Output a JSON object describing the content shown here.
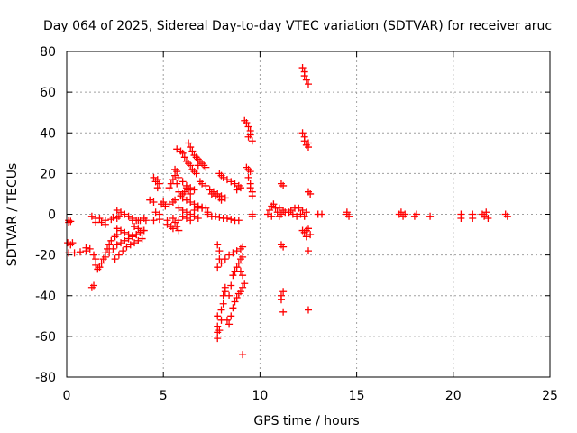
{
  "chart_data": {
    "type": "scatter",
    "title": "Day 064 of 2025, Sidereal Day-to-day VTEC variation (SDTVAR) for receiver aruc",
    "xlabel": "GPS time / hours",
    "ylabel": "SDTVAR / TECUs",
    "xlim": [
      0,
      25
    ],
    "ylim": [
      -80,
      80
    ],
    "xticks": [
      0,
      5,
      10,
      15,
      20,
      25
    ],
    "yticks": [
      -80,
      -60,
      -40,
      -20,
      0,
      20,
      40,
      60,
      80
    ],
    "grid": true,
    "marker": "+",
    "color": "#ff0000",
    "series": [
      {
        "name": "SDTVAR",
        "points": [
          [
            0.1,
            -3
          ],
          [
            0.2,
            -3.5
          ],
          [
            0.1,
            -4
          ],
          [
            0.05,
            -14
          ],
          [
            0.2,
            -15
          ],
          [
            0.3,
            -14
          ],
          [
            0.1,
            -19
          ],
          [
            0.4,
            -19
          ],
          [
            0.7,
            -18.5
          ],
          [
            1.0,
            -18
          ],
          [
            1.2,
            -17
          ],
          [
            1.0,
            -16.5
          ],
          [
            1.3,
            -36
          ],
          [
            1.4,
            -35
          ],
          [
            1.3,
            -1
          ],
          [
            1.5,
            -2
          ],
          [
            1.7,
            -2
          ],
          [
            2.0,
            -3
          ],
          [
            2.3,
            -2.5
          ],
          [
            2.6,
            -2
          ],
          [
            2.7,
            -1
          ],
          [
            2.4,
            -1.5
          ],
          [
            1.5,
            -4
          ],
          [
            1.8,
            -4
          ],
          [
            2.0,
            -5
          ],
          [
            1.4,
            -20
          ],
          [
            1.5,
            -22
          ],
          [
            1.5,
            -25
          ],
          [
            1.6,
            -27
          ],
          [
            1.7,
            -26
          ],
          [
            1.8,
            -24
          ],
          [
            1.9,
            -22
          ],
          [
            2.0,
            -19
          ],
          [
            2.1,
            -17
          ],
          [
            2.2,
            -15
          ],
          [
            2.3,
            -13
          ],
          [
            2.5,
            -11
          ],
          [
            2.6,
            -10
          ],
          [
            2.0,
            -21
          ],
          [
            2.2,
            -19
          ],
          [
            2.4,
            -17
          ],
          [
            2.6,
            -15
          ],
          [
            2.8,
            -14
          ],
          [
            3.0,
            -13
          ],
          [
            3.2,
            -12
          ],
          [
            3.4,
            -11
          ],
          [
            3.6,
            -10
          ],
          [
            3.8,
            -9
          ],
          [
            4.0,
            -8
          ],
          [
            2.5,
            -22
          ],
          [
            2.7,
            -20
          ],
          [
            2.9,
            -18
          ],
          [
            3.1,
            -16
          ],
          [
            3.3,
            -15
          ],
          [
            3.5,
            -14
          ],
          [
            3.7,
            -13
          ],
          [
            3.9,
            -12
          ],
          [
            2.6,
            -7
          ],
          [
            2.8,
            -8
          ],
          [
            3.0,
            -9
          ],
          [
            3.2,
            -10
          ],
          [
            3.4,
            -10.5
          ],
          [
            3.6,
            -10
          ],
          [
            3.8,
            -9
          ],
          [
            3.9,
            -8
          ],
          [
            3.7,
            -7
          ],
          [
            3.5,
            -6
          ],
          [
            2.6,
            2
          ],
          [
            2.8,
            1
          ],
          [
            3.0,
            0
          ],
          [
            3.2,
            -1
          ],
          [
            3.4,
            -2
          ],
          [
            3.6,
            -3
          ],
          [
            3.8,
            -3
          ],
          [
            4.0,
            -2
          ],
          [
            3.4,
            -3
          ],
          [
            3.7,
            -3
          ],
          [
            4.1,
            -3
          ],
          [
            4.5,
            -3
          ],
          [
            4.8,
            -2.5
          ],
          [
            5.2,
            -3
          ],
          [
            5.5,
            -2
          ],
          [
            5.8,
            -3
          ],
          [
            4.3,
            7
          ],
          [
            4.5,
            6
          ],
          [
            4.6,
            1
          ],
          [
            4.8,
            0
          ],
          [
            4.5,
            18
          ],
          [
            4.7,
            17
          ],
          [
            4.8,
            15
          ],
          [
            4.7,
            13
          ],
          [
            4.6,
            16
          ],
          [
            4.9,
            5
          ],
          [
            5.1,
            4
          ],
          [
            5.0,
            6
          ],
          [
            5.3,
            5
          ],
          [
            5.5,
            6
          ],
          [
            5.6,
            7
          ],
          [
            5.2,
            -5
          ],
          [
            5.4,
            -6
          ],
          [
            5.5,
            -7
          ],
          [
            5.7,
            -6
          ],
          [
            5.8,
            -8
          ],
          [
            5.6,
            -4
          ],
          [
            5.3,
            13
          ],
          [
            5.4,
            15
          ],
          [
            5.5,
            17
          ],
          [
            5.6,
            19
          ],
          [
            5.7,
            15
          ],
          [
            5.8,
            11
          ],
          [
            5.9,
            9
          ],
          [
            6.0,
            10
          ],
          [
            6.1,
            11
          ],
          [
            6.2,
            13
          ],
          [
            6.3,
            12
          ],
          [
            6.4,
            10
          ],
          [
            5.6,
            22
          ],
          [
            5.7,
            21
          ],
          [
            5.8,
            18
          ],
          [
            6.0,
            16
          ],
          [
            6.2,
            14
          ],
          [
            6.4,
            13
          ],
          [
            6.6,
            12
          ],
          [
            5.7,
            32
          ],
          [
            5.9,
            31
          ],
          [
            6.0,
            30
          ],
          [
            6.1,
            28
          ],
          [
            6.2,
            26
          ],
          [
            6.3,
            25
          ],
          [
            6.4,
            24
          ],
          [
            6.5,
            22
          ],
          [
            6.6,
            21
          ],
          [
            6.7,
            20
          ],
          [
            6.3,
            35
          ],
          [
            6.4,
            33
          ],
          [
            6.5,
            31
          ],
          [
            6.6,
            29
          ],
          [
            6.7,
            28
          ],
          [
            6.8,
            27
          ],
          [
            6.9,
            26
          ],
          [
            7.0,
            25
          ],
          [
            7.1,
            24
          ],
          [
            7.2,
            23
          ],
          [
            6.8,
            24
          ],
          [
            6.0,
            8
          ],
          [
            6.2,
            7
          ],
          [
            6.4,
            6
          ],
          [
            6.6,
            5
          ],
          [
            6.8,
            4
          ],
          [
            7.0,
            3
          ],
          [
            5.8,
            3
          ],
          [
            6.0,
            2
          ],
          [
            6.2,
            1
          ],
          [
            6.4,
            0
          ],
          [
            6.6,
            -1
          ],
          [
            6.8,
            -2
          ],
          [
            6.0,
            -1
          ],
          [
            6.2,
            -2
          ],
          [
            6.4,
            -3
          ],
          [
            6.6,
            2
          ],
          [
            6.8,
            3
          ],
          [
            7.0,
            3.5
          ],
          [
            7.2,
            3
          ],
          [
            7.3,
            1
          ],
          [
            6.9,
            16
          ],
          [
            7.0,
            15
          ],
          [
            7.2,
            14
          ],
          [
            7.4,
            12
          ],
          [
            7.5,
            10
          ],
          [
            7.7,
            9
          ],
          [
            7.9,
            8
          ],
          [
            8.0,
            7
          ],
          [
            7.6,
            11
          ],
          [
            7.8,
            10
          ],
          [
            8.0,
            9
          ],
          [
            8.2,
            8
          ],
          [
            7.9,
            20
          ],
          [
            8.0,
            19
          ],
          [
            8.1,
            18
          ],
          [
            8.3,
            17
          ],
          [
            8.5,
            16
          ],
          [
            8.7,
            15
          ],
          [
            8.9,
            14
          ],
          [
            9.0,
            13
          ],
          [
            8.8,
            12
          ],
          [
            7.3,
            0
          ],
          [
            7.5,
            -1
          ],
          [
            7.7,
            -1
          ],
          [
            7.9,
            -1.5
          ],
          [
            8.1,
            -2
          ],
          [
            8.3,
            -2
          ],
          [
            8.5,
            -2.5
          ],
          [
            8.7,
            -3
          ],
          [
            8.9,
            -3
          ],
          [
            7.8,
            -15
          ],
          [
            7.9,
            -18
          ],
          [
            7.9,
            -22
          ],
          [
            7.8,
            -26
          ],
          [
            8.0,
            -24
          ],
          [
            8.2,
            -22
          ],
          [
            8.4,
            -20
          ],
          [
            8.6,
            -19
          ],
          [
            8.8,
            -18
          ],
          [
            9.0,
            -17
          ],
          [
            9.1,
            -16
          ],
          [
            7.8,
            -50
          ],
          [
            7.8,
            -55
          ],
          [
            7.8,
            -58
          ],
          [
            7.8,
            -61
          ],
          [
            7.9,
            -57
          ],
          [
            8.0,
            -52
          ],
          [
            8.0,
            -47
          ],
          [
            8.1,
            -44
          ],
          [
            8.1,
            -40
          ],
          [
            8.2,
            -38
          ],
          [
            8.2,
            -36
          ],
          [
            8.3,
            -52
          ],
          [
            8.4,
            -54
          ],
          [
            8.5,
            -50
          ],
          [
            8.6,
            -46
          ],
          [
            8.7,
            -43
          ],
          [
            8.8,
            -41
          ],
          [
            8.9,
            -39
          ],
          [
            9.0,
            -38
          ],
          [
            9.1,
            -36
          ],
          [
            9.2,
            -34
          ],
          [
            8.4,
            -40
          ],
          [
            8.5,
            -35
          ],
          [
            8.6,
            -30
          ],
          [
            8.7,
            -28
          ],
          [
            8.8,
            -26
          ],
          [
            8.9,
            -24
          ],
          [
            9.0,
            -22
          ],
          [
            9.1,
            -21
          ],
          [
            9.0,
            -28
          ],
          [
            9.1,
            -30
          ],
          [
            9.1,
            -69
          ],
          [
            9.2,
            46
          ],
          [
            9.3,
            45
          ],
          [
            9.4,
            43
          ],
          [
            9.5,
            41
          ],
          [
            9.5,
            39
          ],
          [
            9.6,
            36
          ],
          [
            9.4,
            38
          ],
          [
            9.3,
            23
          ],
          [
            9.4,
            22
          ],
          [
            9.5,
            21
          ],
          [
            9.4,
            18
          ],
          [
            9.5,
            15
          ],
          [
            9.5,
            13
          ],
          [
            9.6,
            11
          ],
          [
            9.6,
            9
          ],
          [
            9.6,
            0
          ],
          [
            9.6,
            -1
          ],
          [
            10.4,
            0
          ],
          [
            10.5,
            2
          ],
          [
            10.6,
            4
          ],
          [
            10.7,
            5
          ],
          [
            10.8,
            3
          ],
          [
            10.9,
            1
          ],
          [
            11.0,
            -1
          ],
          [
            11.1,
            0
          ],
          [
            11.2,
            2
          ],
          [
            11.3,
            1
          ],
          [
            10.6,
            -1
          ],
          [
            11.0,
            3
          ],
          [
            11.1,
            15
          ],
          [
            11.2,
            14
          ],
          [
            11.1,
            -15
          ],
          [
            11.2,
            -16
          ],
          [
            11.1,
            -40
          ],
          [
            11.1,
            -42
          ],
          [
            11.2,
            -38
          ],
          [
            11.2,
            -48
          ],
          [
            11.5,
            1
          ],
          [
            11.6,
            2
          ],
          [
            11.8,
            3
          ],
          [
            12.0,
            3
          ],
          [
            12.2,
            2
          ],
          [
            12.4,
            1
          ],
          [
            11.7,
            0
          ],
          [
            11.9,
            -1
          ],
          [
            12.1,
            0
          ],
          [
            12.3,
            -1
          ],
          [
            12.2,
            72
          ],
          [
            12.3,
            70
          ],
          [
            12.3,
            68
          ],
          [
            12.4,
            66
          ],
          [
            12.5,
            64
          ],
          [
            12.2,
            40
          ],
          [
            12.3,
            38
          ],
          [
            12.3,
            36
          ],
          [
            12.4,
            34
          ],
          [
            12.5,
            33
          ],
          [
            12.5,
            35
          ],
          [
            12.5,
            11
          ],
          [
            12.6,
            10
          ],
          [
            12.2,
            -8
          ],
          [
            12.3,
            -9
          ],
          [
            12.4,
            -8
          ],
          [
            12.5,
            -7
          ],
          [
            12.6,
            -10
          ],
          [
            12.4,
            -11
          ],
          [
            12.5,
            -18
          ],
          [
            12.5,
            -47
          ],
          [
            13.0,
            0
          ],
          [
            13.2,
            0
          ],
          [
            14.5,
            0
          ],
          [
            14.6,
            -1
          ],
          [
            14.5,
            1
          ],
          [
            17.2,
            0
          ],
          [
            17.3,
            1
          ],
          [
            17.4,
            -1
          ],
          [
            17.5,
            0
          ],
          [
            18.0,
            -1
          ],
          [
            18.1,
            0
          ],
          [
            18.8,
            -1
          ],
          [
            20.4,
            0
          ],
          [
            20.4,
            -2
          ],
          [
            21.0,
            0
          ],
          [
            21.0,
            -2
          ],
          [
            21.5,
            0
          ],
          [
            21.6,
            -1
          ],
          [
            21.7,
            1
          ],
          [
            21.8,
            -2
          ],
          [
            22.7,
            0
          ],
          [
            22.8,
            -1
          ]
        ]
      }
    ]
  }
}
